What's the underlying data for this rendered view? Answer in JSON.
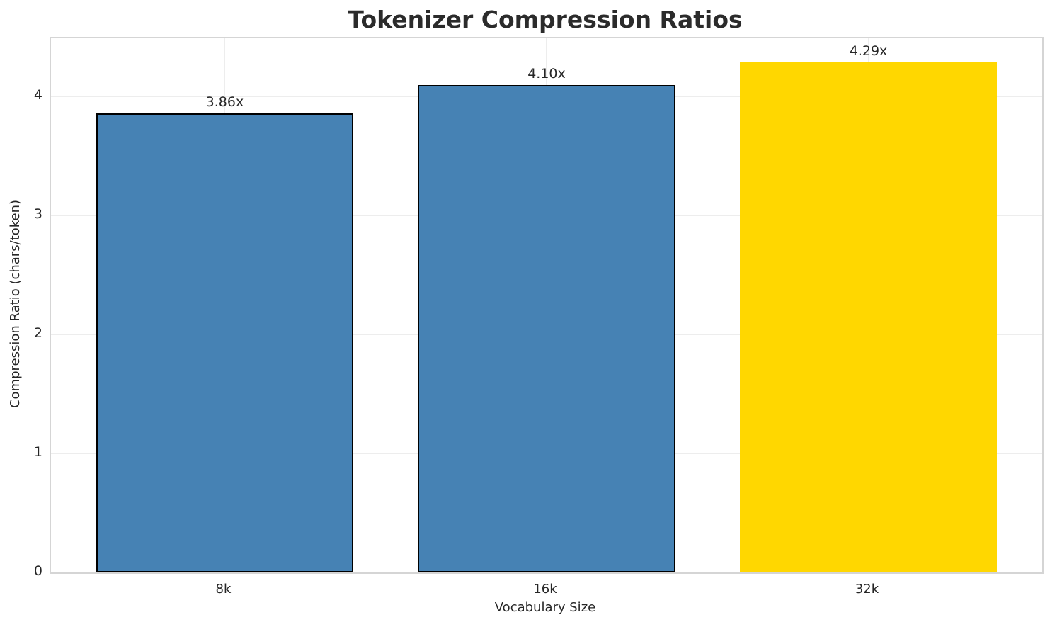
{
  "chart_data": {
    "type": "bar",
    "title": "Tokenizer Compression Ratios",
    "xlabel": "Vocabulary Size",
    "ylabel": "Compression Ratio (chars/token)",
    "categories": [
      "8k",
      "16k",
      "32k"
    ],
    "values": [
      3.86,
      4.1,
      4.29
    ],
    "value_labels": [
      "3.86x",
      "4.10x",
      "4.29x"
    ],
    "bar_colors": [
      "#4682B4",
      "#4682B4",
      "#FFD700"
    ],
    "bar_edge_colors": [
      "#000000",
      "#000000",
      "none"
    ],
    "yticks": [
      "0",
      "1",
      "2",
      "3",
      "4"
    ],
    "ytick_values": [
      0,
      1,
      2,
      3,
      4
    ],
    "ylim": [
      0,
      4.49
    ],
    "grid": "on",
    "legend": "none",
    "colors": {
      "background": "#ffffff",
      "grid": "#ededed",
      "spine": "#d5d5d5",
      "text": "#262626",
      "title": "#2b2b2b"
    }
  }
}
